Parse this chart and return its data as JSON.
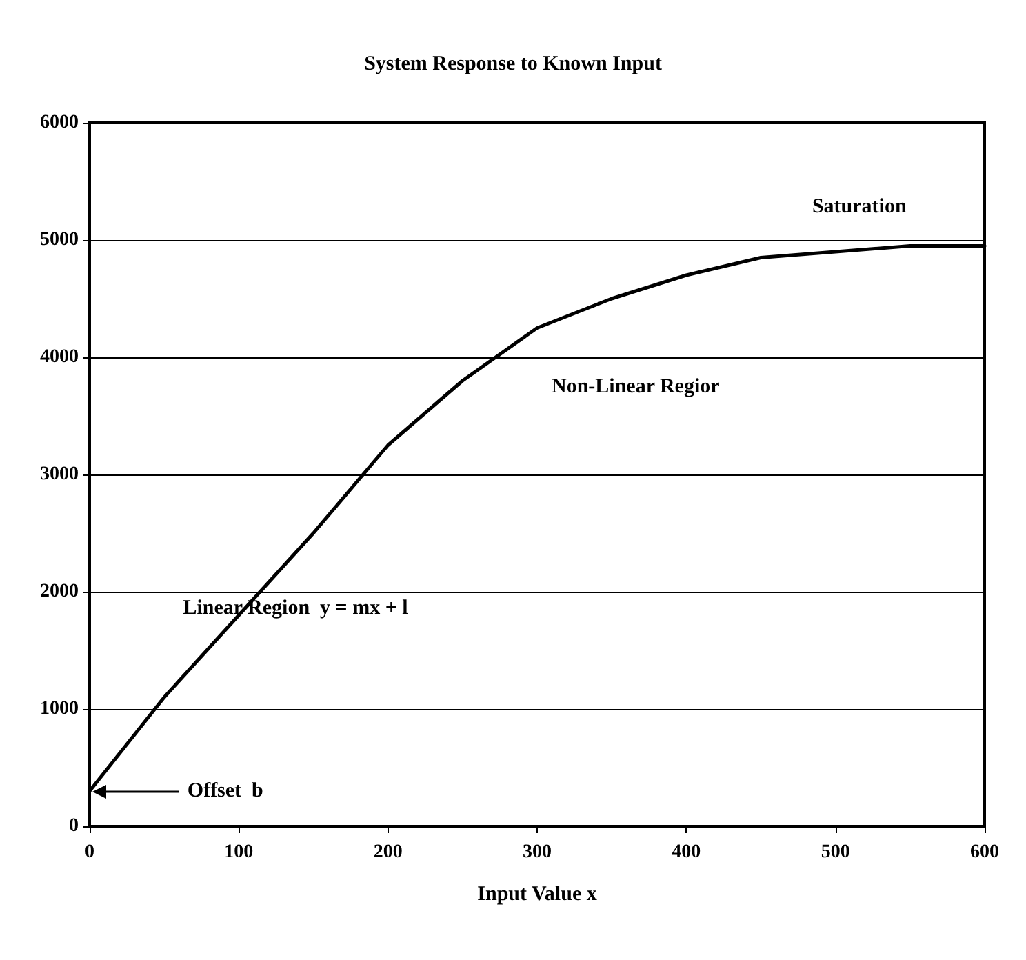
{
  "chart_data": {
    "type": "line",
    "title": "System Response to Known Input",
    "xlabel": "Input Value x",
    "x": [
      0,
      50,
      100,
      150,
      200,
      250,
      300,
      350,
      400,
      450,
      500,
      550,
      600
    ],
    "series": [
      {
        "color": "#000000",
        "values": [
          300,
          1100,
          1800,
          2500,
          3250,
          3800,
          4250,
          4500,
          4700,
          4850,
          4900,
          4950,
          4950
        ]
      }
    ],
    "xlim": [
      0,
      600
    ],
    "xticks": [
      0,
      100,
      200,
      300,
      400,
      500,
      600
    ],
    "ylim": [
      0,
      6000
    ],
    "yticks": [
      0,
      1000,
      2000,
      3000,
      4000,
      5000,
      6000
    ],
    "grid": "y",
    "marker": "none",
    "line_style": "solid",
    "annotations": [
      "Saturation",
      "Non-Linear Regior",
      "Linear Region  y = mx + l",
      "Offset  b"
    ]
  }
}
